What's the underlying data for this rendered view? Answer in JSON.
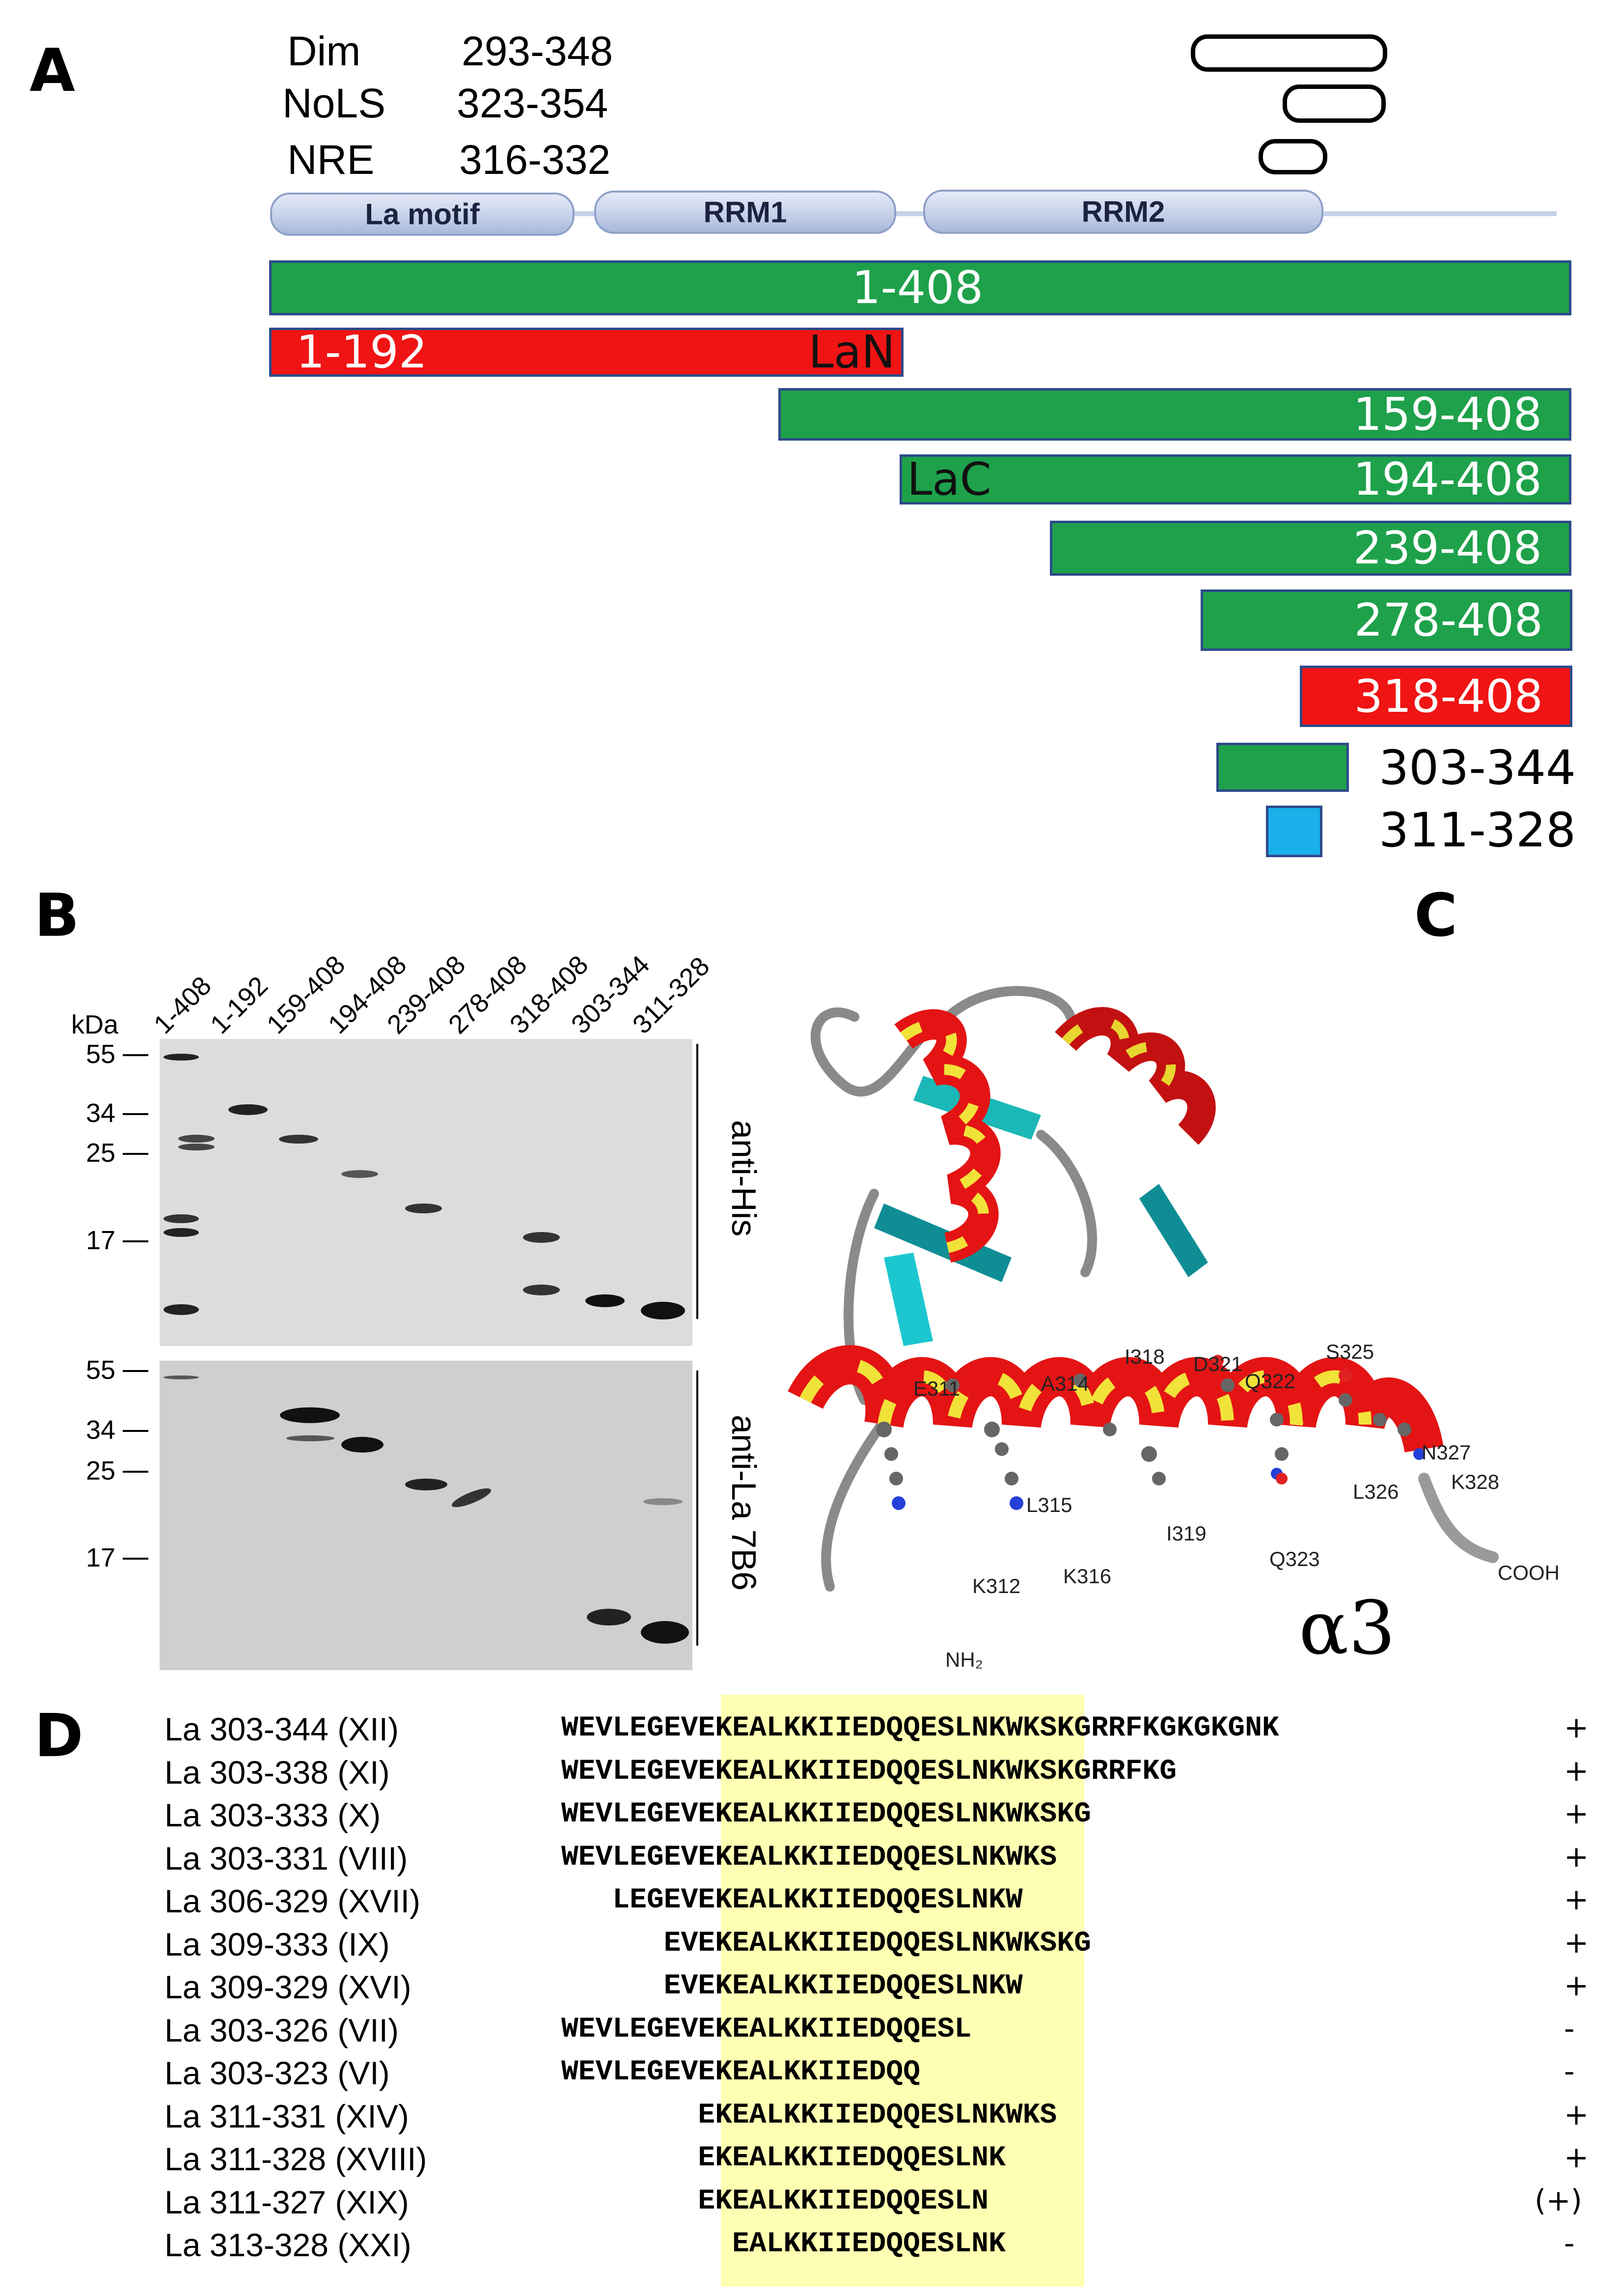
{
  "panel_a": {
    "letter": "A",
    "features": [
      {
        "name": "Dim",
        "range": "293-348"
      },
      {
        "name": "NoLS",
        "range": "323-354"
      },
      {
        "name": "NRE",
        "range": "316-332"
      }
    ],
    "domains": [
      "La motif",
      "RRM1",
      "RRM2"
    ],
    "constructs": [
      {
        "label": "1-408",
        "color": "green"
      },
      {
        "label": "1-192",
        "inner": "LaN",
        "color": "red"
      },
      {
        "label": "159-408",
        "color": "green"
      },
      {
        "label": "194-408",
        "inner": "LaC",
        "color": "green"
      },
      {
        "label": "239-408",
        "color": "green"
      },
      {
        "label": "278-408",
        "color": "green"
      },
      {
        "label": "318-408",
        "color": "red"
      },
      {
        "label": "303-344",
        "color": "green"
      },
      {
        "label": "311-328",
        "color": "blue"
      }
    ]
  },
  "panel_b": {
    "letter": "B",
    "kda": "kDa",
    "lanes": [
      "1-408",
      "1-192",
      "159-408",
      "194-408",
      "239-408",
      "278-408",
      "318-408",
      "303-344",
      "311-328"
    ],
    "top_markers": [
      "55",
      "34",
      "25",
      "17"
    ],
    "bottom_markers": [
      "55",
      "34",
      "25",
      "17"
    ],
    "top_antibody": "anti-His",
    "bottom_antibody": "anti-La 7B6"
  },
  "panel_c": {
    "letter": "C",
    "helix_label": "α3",
    "residues": [
      "E311",
      "K312",
      "A314",
      "L315",
      "K316",
      "I318",
      "I319",
      "D321",
      "Q322",
      "Q323",
      "S325",
      "L326",
      "N327",
      "K328"
    ],
    "nh2": "NH₂",
    "cooh": "COOH"
  },
  "panel_d": {
    "letter": "D",
    "peptides": [
      {
        "name": "La 303-344 (XII)",
        "seq": "WEVLEGEVEKEALKKIIEDQQESLNKWKSKGRRFKGKGKGNK",
        "result": "+"
      },
      {
        "name": "La 303-338 (XI)",
        "seq": "WEVLEGEVEKEALKKIIEDQQESLNKWKSKGRRFKG",
        "result": "+"
      },
      {
        "name": "La 303-333 (X)",
        "seq": "WEVLEGEVEKEALKKIIEDQQESLNKWKSKG",
        "result": "+"
      },
      {
        "name": "La 303-331 (VIII)",
        "seq": "WEVLEGEVEKEALKKIIEDQQESLNKWKS",
        "result": "+"
      },
      {
        "name": "La 306-329 (XVII)",
        "seq": "LEGEVEKEALKKIIEDQQESLNKW",
        "result": "+"
      },
      {
        "name": "La 309-333 (IX)",
        "seq": "EVEKEALKKIIEDQQESLNKWKSKG",
        "result": "+"
      },
      {
        "name": "La 309-329 (XVI)",
        "seq": "EVEKEALKKIIEDQQESLNKW",
        "result": "+"
      },
      {
        "name": "La 303-326 (VII)",
        "seq": "WEVLEGEVEKEALKKIIEDQQESL",
        "result": "-"
      },
      {
        "name": "La 303-323 (VI)",
        "seq": "WEVLEGEVEKEALKKIIEDQQ",
        "result": "-"
      },
      {
        "name": "La 311-331 (XIV)",
        "seq": "EKEALKKIIEDQQESLNKWKS",
        "result": "+"
      },
      {
        "name": "La 311-328 (XVIII)",
        "seq": "EKEALKKIIEDQQESLNK",
        "result": "+"
      },
      {
        "name": "La 311-327 (XIX)",
        "seq": "EKEALKKIIEDQQESLN",
        "result": "(+)"
      },
      {
        "name": "La 313-328 (XXI)",
        "seq": "EALKKIIEDQQESLNK",
        "result": "-"
      }
    ]
  }
}
